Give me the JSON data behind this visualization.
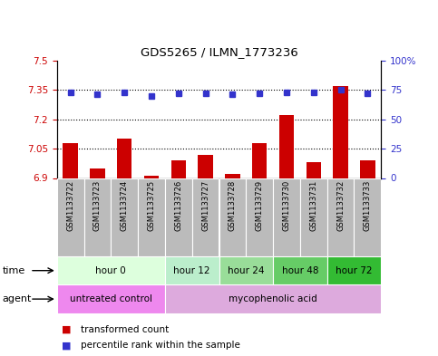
{
  "title": "GDS5265 / ILMN_1773236",
  "samples": [
    "GSM1133722",
    "GSM1133723",
    "GSM1133724",
    "GSM1133725",
    "GSM1133726",
    "GSM1133727",
    "GSM1133728",
    "GSM1133729",
    "GSM1133730",
    "GSM1133731",
    "GSM1133732",
    "GSM1133733"
  ],
  "transformed_count": [
    7.08,
    6.95,
    7.1,
    6.91,
    6.99,
    7.02,
    6.92,
    7.08,
    7.22,
    6.98,
    7.37,
    6.99
  ],
  "percentile_rank": [
    73,
    71,
    73,
    70,
    72,
    72,
    71,
    72,
    73,
    73,
    75,
    72
  ],
  "ylim_left": [
    6.9,
    7.5
  ],
  "ylim_right": [
    0,
    100
  ],
  "yticks_left": [
    6.9,
    7.05,
    7.2,
    7.35,
    7.5
  ],
  "yticks_right": [
    0,
    25,
    50,
    75,
    100
  ],
  "ytick_labels_left": [
    "6.9",
    "7.05",
    "7.2",
    "7.35",
    "7.5"
  ],
  "ytick_labels_right": [
    "0",
    "25",
    "50",
    "75",
    "100%"
  ],
  "bar_color": "#cc0000",
  "dot_color": "#3333cc",
  "time_groups": [
    {
      "label": "hour 0",
      "start": 0,
      "end": 4,
      "color": "#ddffdd"
    },
    {
      "label": "hour 12",
      "start": 4,
      "end": 6,
      "color": "#bbeecc"
    },
    {
      "label": "hour 24",
      "start": 6,
      "end": 8,
      "color": "#99dd99"
    },
    {
      "label": "hour 48",
      "start": 8,
      "end": 10,
      "color": "#66cc66"
    },
    {
      "label": "hour 72",
      "start": 10,
      "end": 12,
      "color": "#33bb33"
    }
  ],
  "agent_groups": [
    {
      "label": "untreated control",
      "start": 0,
      "end": 4,
      "color": "#ee88ee"
    },
    {
      "label": "mycophenolic acid",
      "start": 4,
      "end": 12,
      "color": "#ddaadd"
    }
  ],
  "legend_bar_label": "transformed count",
  "legend_dot_label": "percentile rank within the sample",
  "grid_lines": [
    7.05,
    7.2,
    7.35
  ],
  "sample_bg_color": "#bbbbbb",
  "left_tick_color": "#cc0000",
  "right_tick_color": "#3333cc"
}
